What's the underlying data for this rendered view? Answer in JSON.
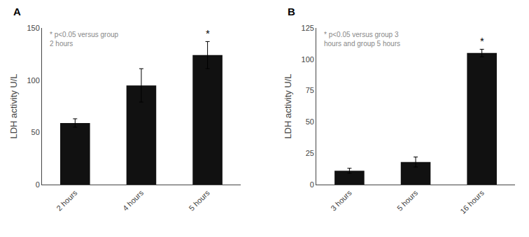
{
  "chart_data": [
    {
      "type": "bar",
      "title": "A",
      "categories": [
        "2 hours",
        "4 hours",
        "5 hours"
      ],
      "values": [
        59,
        95,
        124
      ],
      "errors": [
        4,
        16,
        13
      ],
      "color": "#111111",
      "ylabel": "LDH activity U/L",
      "ylim": [
        0,
        150
      ],
      "yticks": [
        0,
        50,
        100,
        150
      ],
      "grid": false,
      "annotations": [
        {
          "text": "*",
          "category": "5 hours"
        },
        {
          "text": "* p<0.05 versus group\n2 hours",
          "color": "#888888"
        }
      ]
    },
    {
      "type": "bar",
      "title": "B",
      "categories": [
        "3 hours",
        "5 hours",
        "16 hours"
      ],
      "values": [
        11,
        18,
        105
      ],
      "errors": [
        2,
        4,
        3
      ],
      "color": "#111111",
      "ylabel": "LDH activity U/L",
      "ylim": [
        0,
        125
      ],
      "yticks": [
        0,
        25,
        50,
        75,
        100,
        125
      ],
      "grid": false,
      "annotations": [
        {
          "text": "*",
          "category": "16 hours"
        },
        {
          "text": "* p<0.05 versus group 3\nhours and group 5 hours",
          "color": "#888888"
        }
      ]
    }
  ]
}
